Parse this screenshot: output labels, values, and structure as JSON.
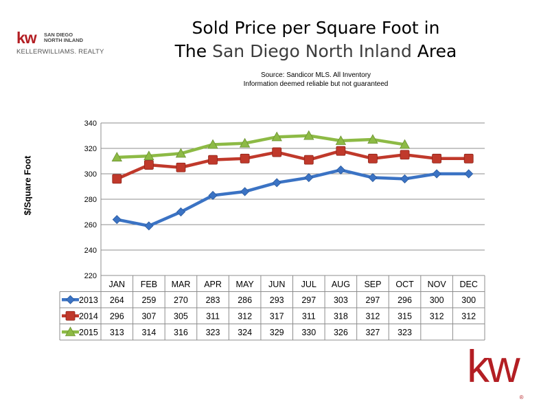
{
  "title_line1": "Sold Price per Square Foot in",
  "title_line2_pre": "The",
  "title_line2_mid": " San Diego North Inland ",
  "title_line2_post": "Area",
  "source_line1": "Source: Sandicor MLS. All Inventory",
  "source_line2": "Information deemed reliable but not guaranteed",
  "logo_small": {
    "mark": "kw",
    "region_line1": "SAN DIEGO",
    "region_line2": "NORTH INLAND",
    "brand": "KELLERWILLIAMS. REALTY"
  },
  "logo_big": {
    "mark": "kw",
    "reg": "®"
  },
  "colors": {
    "s2013": "#3b73c4",
    "s2014": "#c0392b",
    "s2015": "#8dba45",
    "brand": "#b31e23"
  },
  "chart_data": {
    "type": "line",
    "ylabel": "$/Square Foot",
    "ylim": [
      220,
      340
    ],
    "yticks": [
      220,
      240,
      260,
      280,
      300,
      320,
      340
    ],
    "grid": true,
    "categories": [
      "JAN",
      "FEB",
      "MAR",
      "APR",
      "MAY",
      "JUN",
      "JUL",
      "AUG",
      "SEP",
      "OCT",
      "NOV",
      "DEC"
    ],
    "series": [
      {
        "name": "2013",
        "marker": "diamond",
        "color": "#3b73c4",
        "values": [
          264,
          259,
          270,
          283,
          286,
          293,
          297,
          303,
          297,
          296,
          300,
          300
        ]
      },
      {
        "name": "2014",
        "marker": "square",
        "color": "#c0392b",
        "values": [
          296,
          307,
          305,
          311,
          312,
          317,
          311,
          318,
          312,
          315,
          312,
          312
        ]
      },
      {
        "name": "2015",
        "marker": "triangle",
        "color": "#8dba45",
        "values": [
          313,
          314,
          316,
          323,
          324,
          329,
          330,
          326,
          327,
          323,
          null,
          null
        ]
      }
    ]
  }
}
